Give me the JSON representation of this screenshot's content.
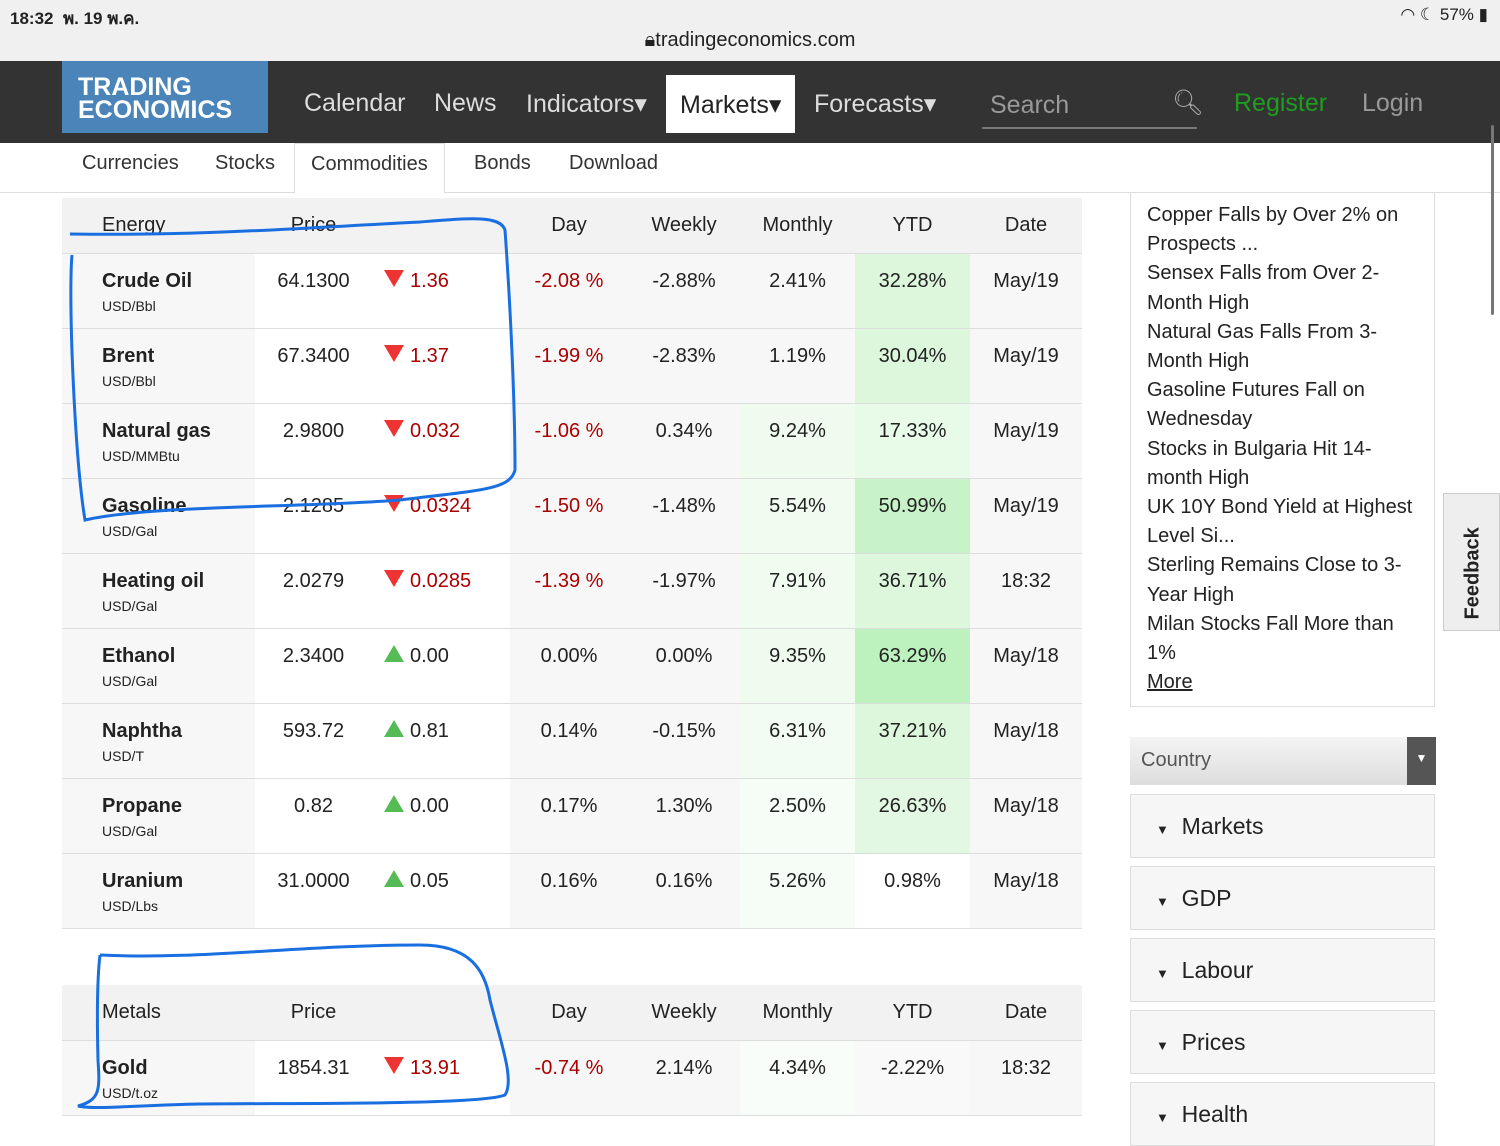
{
  "status": {
    "time": "18:32",
    "date": "พ. 19 พ.ค.",
    "battery": "57%",
    "url": "tradingeconomics.com"
  },
  "nav": {
    "logo_line1": "TRADING",
    "logo_line2": "ECONOMICS",
    "items": [
      "Calendar",
      "News",
      "Indicators▾",
      "Markets▾",
      "Forecasts▾"
    ],
    "search_placeholder": "Search",
    "register": "Register",
    "login": "Login"
  },
  "subnav": [
    "Currencies",
    "Stocks",
    "Commodities",
    "Bonds",
    "Download"
  ],
  "energy": {
    "headers": [
      "Energy",
      "Price",
      "",
      "Day",
      "Weekly",
      "Monthly",
      "YTD",
      "Date"
    ],
    "rows": [
      {
        "name": "Crude Oil",
        "unit": "USD/Bbl",
        "price": "64.1300",
        "dir": "down",
        "change": "1.36",
        "day": "-2.08 %",
        "weekly": "-2.88%",
        "monthly": "2.41%",
        "ytd": "32.28%",
        "date": "May/19"
      },
      {
        "name": "Brent",
        "unit": "USD/Bbl",
        "price": "67.3400",
        "dir": "down",
        "change": "1.37",
        "day": "-1.99 %",
        "weekly": "-2.83%",
        "monthly": "1.19%",
        "ytd": "30.04%",
        "date": "May/19"
      },
      {
        "name": "Natural gas",
        "unit": "USD/MMBtu",
        "price": "2.9800",
        "dir": "down",
        "change": "0.032",
        "day": "-1.06 %",
        "weekly": "0.34%",
        "monthly": "9.24%",
        "ytd": "17.33%",
        "date": "May/19"
      },
      {
        "name": "Gasoline",
        "unit": "USD/Gal",
        "price": "2.1285",
        "dir": "down",
        "change": "0.0324",
        "day": "-1.50 %",
        "weekly": "-1.48%",
        "monthly": "5.54%",
        "ytd": "50.99%",
        "date": "May/19"
      },
      {
        "name": "Heating oil",
        "unit": "USD/Gal",
        "price": "2.0279",
        "dir": "down",
        "change": "0.0285",
        "day": "-1.39 %",
        "weekly": "-1.97%",
        "monthly": "7.91%",
        "ytd": "36.71%",
        "date": "18:32"
      },
      {
        "name": "Ethanol",
        "unit": "USD/Gal",
        "price": "2.3400",
        "dir": "up",
        "change": "0.00",
        "day": "0.00%",
        "weekly": "0.00%",
        "monthly": "9.35%",
        "ytd": "63.29%",
        "date": "May/18"
      },
      {
        "name": "Naphtha",
        "unit": "USD/T",
        "price": "593.72",
        "dir": "up",
        "change": "0.81",
        "day": "0.14%",
        "weekly": "-0.15%",
        "monthly": "6.31%",
        "ytd": "37.21%",
        "date": "May/18"
      },
      {
        "name": "Propane",
        "unit": "USD/Gal",
        "price": "0.82",
        "dir": "up",
        "change": "0.00",
        "day": "0.17%",
        "weekly": "1.30%",
        "monthly": "2.50%",
        "ytd": "26.63%",
        "date": "May/18"
      },
      {
        "name": "Uranium",
        "unit": "USD/Lbs",
        "price": "31.0000",
        "dir": "up",
        "change": "0.05",
        "day": "0.16%",
        "weekly": "0.16%",
        "monthly": "5.26%",
        "ytd": "0.98%",
        "date": "May/18"
      }
    ]
  },
  "metals": {
    "headers": [
      "Metals",
      "Price",
      "",
      "Day",
      "Weekly",
      "Monthly",
      "YTD",
      "Date"
    ],
    "rows": [
      {
        "name": "Gold",
        "unit": "USD/t.oz",
        "price": "1854.31",
        "dir": "down",
        "change": "13.91",
        "day": "-0.74 %",
        "weekly": "2.14%",
        "monthly": "4.34%",
        "ytd": "-2.22%",
        "date": "18:32"
      }
    ]
  },
  "news": [
    "Copper Falls by Over 2% on Prospects ...",
    "Sensex Falls from Over 2-Month High",
    "Natural Gas Falls From 3-Month High",
    "Gasoline Futures Fall on Wednesday",
    "Stocks in Bulgaria Hit 14-month High",
    "UK 10Y Bond Yield at Highest Level Si...",
    "Sterling Remains Close to 3-Year High",
    "Milan Stocks Fall More than 1%"
  ],
  "news_more": "More",
  "country_label": "Country",
  "accordion": [
    "Markets",
    "GDP",
    "Labour",
    "Prices",
    "Health"
  ],
  "feedback": "Feedback",
  "colors": {
    "nav_bg": "#333333",
    "logo_bg": "#4a84b8",
    "register": "#1e9e1e",
    "negative": "#aa0000"
  }
}
